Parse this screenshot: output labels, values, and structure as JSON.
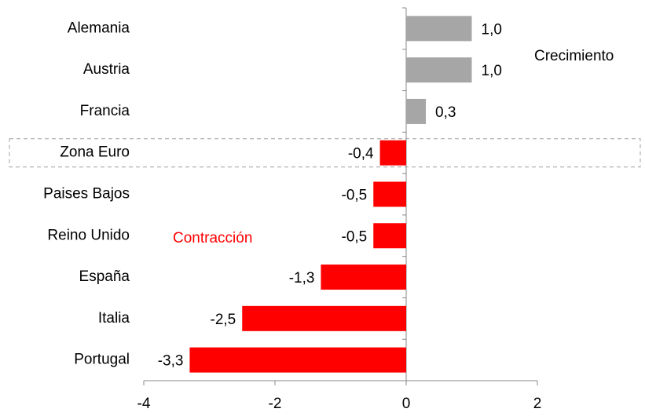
{
  "chart_data": {
    "type": "hbar",
    "categories": [
      "Alemania",
      "Austria",
      "Francia",
      "Zona Euro",
      "Paises Bajos",
      "Reino Unido",
      "España",
      "Italia",
      "Portugal"
    ],
    "values": [
      1.0,
      1.0,
      0.3,
      -0.4,
      -0.5,
      -0.5,
      -1.3,
      -2.5,
      -3.3
    ],
    "value_labels": [
      "1,0",
      "1,0",
      "0,3",
      "-0,4",
      "-0,5",
      "-0,5",
      "-1,3",
      "-2,5",
      "-3,3"
    ],
    "positive_color": "#a6a6a6",
    "negative_color": "#ff0000",
    "xlim": [
      -4,
      2
    ],
    "xticks": [
      -4,
      -2,
      0,
      2
    ],
    "highlight_index": 3,
    "annotations": [
      {
        "text": "Crecimiento",
        "color": "#000000"
      },
      {
        "text": "Contracción",
        "color": "#ff0000"
      }
    ]
  }
}
